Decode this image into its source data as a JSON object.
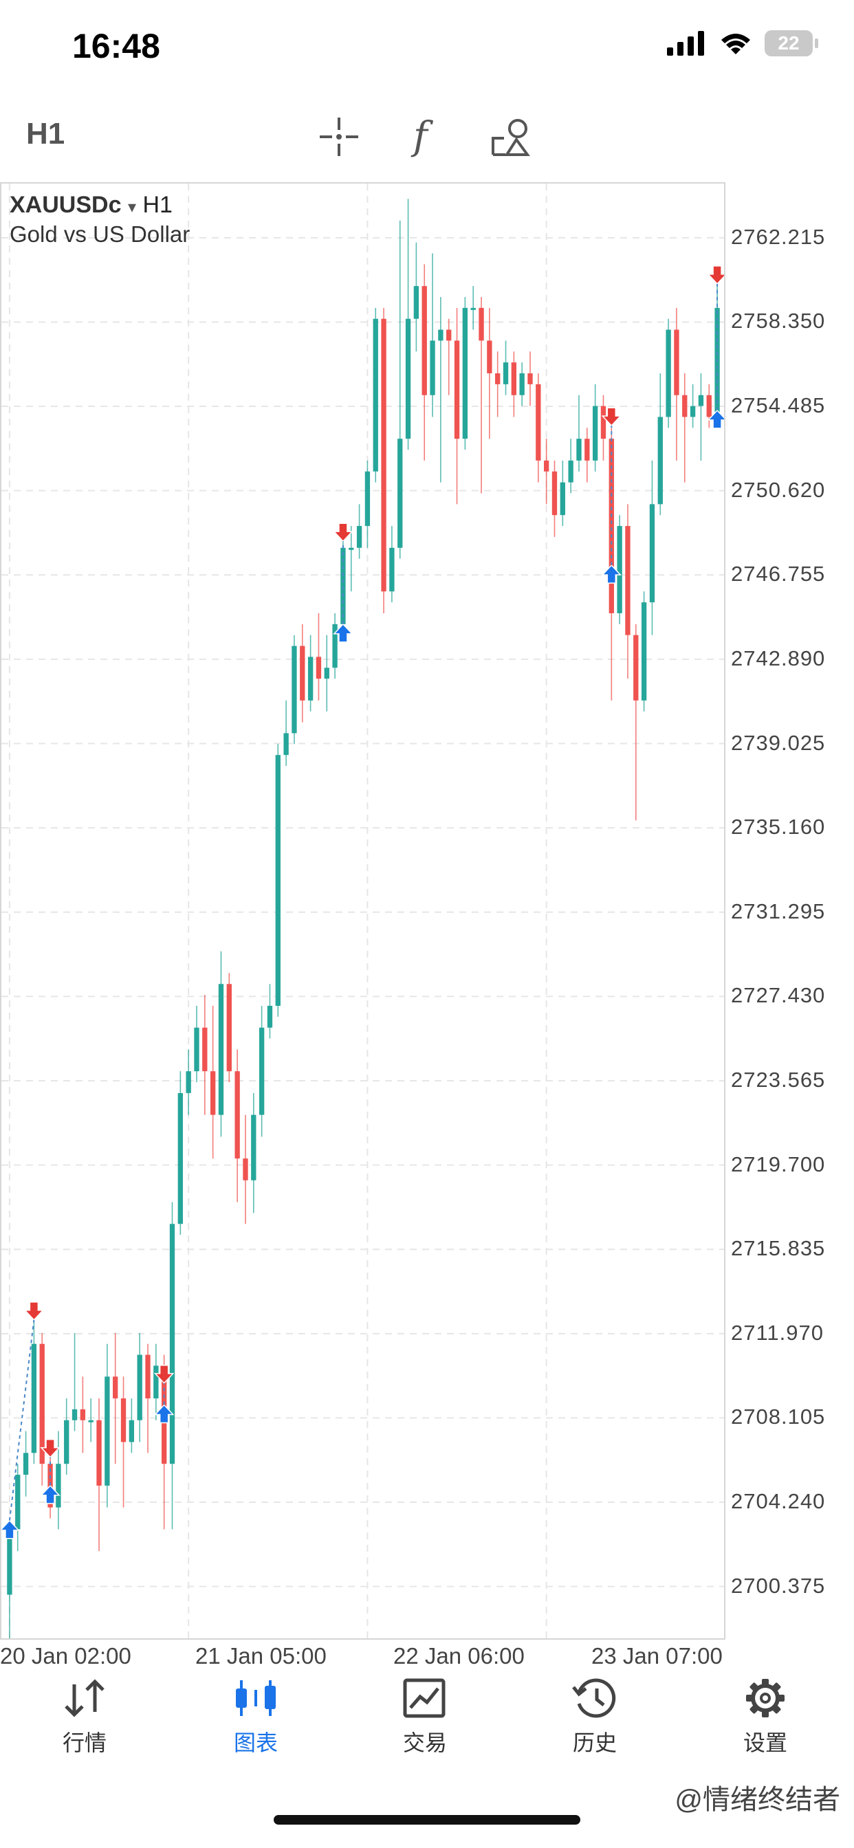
{
  "status_bar": {
    "time": "16:48",
    "battery": "22",
    "icons": [
      "cellular-signal-icon",
      "wifi-icon",
      "battery-icon"
    ]
  },
  "toolbar": {
    "timeframe": "H1",
    "tools": [
      "crosshair-icon",
      "indicators-icon",
      "objects-icon"
    ]
  },
  "chart": {
    "symbol": "XAUUSDc",
    "dropdown_glyph": "▾",
    "timeframe": "H1",
    "description": "Gold vs US Dollar",
    "price_levels": [
      "2762.215",
      "2758.350",
      "2754.485",
      "2750.620",
      "2746.755",
      "2742.890",
      "2739.025",
      "2735.160",
      "2731.295",
      "2727.430",
      "2723.565",
      "2719.700",
      "2715.835",
      "2711.970",
      "2708.105",
      "2704.240",
      "2700.375"
    ],
    "time_labels": [
      "20 Jan 02:00",
      "21 Jan 05:00",
      "22 Jan 06:00",
      "23 Jan 07:00"
    ],
    "colors": {
      "bull": "#26a69a",
      "bear": "#ef5350",
      "buy_arrow": "#1a73e8",
      "sell_arrow": "#e53935",
      "grid": "#e6e6e6"
    }
  },
  "chart_data": {
    "type": "candlestick",
    "title": "XAUUSDc H1",
    "y_range": [
      2698.0,
      2764.7
    ],
    "x_labels": [
      "20 Jan 02:00",
      "21 Jan 05:00",
      "22 Jan 06:00",
      "23 Jan 07:00"
    ],
    "candles": [
      [
        2700.0,
        2703.0,
        2696.0,
        2703.5
      ],
      [
        2703.0,
        2705.5,
        2702.0,
        2706.0
      ],
      [
        2705.5,
        2706.5,
        2704.5,
        2707.5
      ],
      [
        2706.5,
        2711.5,
        2706.0,
        2713.0
      ],
      [
        2711.5,
        2706.0,
        2705.0,
        2712.0
      ],
      [
        2706.0,
        2704.0,
        2703.5,
        2707.0
      ],
      [
        2704.0,
        2706.0,
        2703.0,
        2707.5
      ],
      [
        2706.0,
        2708.0,
        2705.5,
        2709.0
      ],
      [
        2708.0,
        2708.5,
        2707.5,
        2712.0
      ],
      [
        2708.5,
        2708.0,
        2706.5,
        2710.0
      ],
      [
        2708.0,
        2708.0,
        2707.0,
        2709.0
      ],
      [
        2708.0,
        2705.0,
        2702.0,
        2709.0
      ],
      [
        2705.0,
        2710.0,
        2704.0,
        2711.5
      ],
      [
        2710.0,
        2709.0,
        2706.0,
        2712.0
      ],
      [
        2709.0,
        2707.0,
        2704.0,
        2710.0
      ],
      [
        2707.0,
        2708.0,
        2706.5,
        2709.0
      ],
      [
        2708.0,
        2711.0,
        2707.0,
        2712.0
      ],
      [
        2711.0,
        2709.0,
        2706.5,
        2711.5
      ],
      [
        2709.0,
        2710.5,
        2708.0,
        2711.5
      ],
      [
        2710.5,
        2706.0,
        2703.0,
        2711.0
      ],
      [
        2706.0,
        2717.0,
        2703.0,
        2718.0
      ],
      [
        2717.0,
        2723.0,
        2716.5,
        2724.0
      ],
      [
        2723.0,
        2724.0,
        2722.0,
        2725.0
      ],
      [
        2724.0,
        2726.0,
        2723.5,
        2727.0
      ],
      [
        2726.0,
        2724.0,
        2722.0,
        2727.5
      ],
      [
        2724.0,
        2722.0,
        2720.0,
        2727.0
      ],
      [
        2722.0,
        2728.0,
        2721.0,
        2729.5
      ],
      [
        2728.0,
        2724.0,
        2723.5,
        2728.5
      ],
      [
        2724.0,
        2720.0,
        2718.0,
        2725.0
      ],
      [
        2720.0,
        2719.0,
        2717.0,
        2722.0
      ],
      [
        2719.0,
        2722.0,
        2717.5,
        2723.0
      ],
      [
        2722.0,
        2726.0,
        2721.0,
        2727.0
      ],
      [
        2726.0,
        2727.0,
        2725.5,
        2728.0
      ],
      [
        2727.0,
        2738.5,
        2726.5,
        2739.0
      ],
      [
        2738.5,
        2739.5,
        2738.0,
        2741.0
      ],
      [
        2739.5,
        2743.5,
        2739.0,
        2744.0
      ],
      [
        2743.5,
        2741.0,
        2740.0,
        2744.5
      ],
      [
        2741.0,
        2743.0,
        2740.5,
        2744.0
      ],
      [
        2743.0,
        2742.0,
        2741.0,
        2745.0
      ],
      [
        2742.0,
        2742.5,
        2740.5,
        2744.0
      ],
      [
        2742.5,
        2744.5,
        2742.0,
        2745.0
      ],
      [
        2744.5,
        2748.0,
        2744.0,
        2748.5
      ],
      [
        2748.0,
        2748.0,
        2746.0,
        2749.0
      ],
      [
        2748.0,
        2749.0,
        2747.5,
        2750.0
      ],
      [
        2749.0,
        2751.5,
        2748.0,
        2752.0
      ],
      [
        2751.5,
        2758.5,
        2751.0,
        2759.0
      ],
      [
        2758.5,
        2746.0,
        2745.0,
        2759.0
      ],
      [
        2746.0,
        2748.0,
        2745.5,
        2749.0
      ],
      [
        2748.0,
        2753.0,
        2747.5,
        2763.0
      ],
      [
        2753.0,
        2758.5,
        2752.5,
        2764.0
      ],
      [
        2758.5,
        2760.0,
        2757.0,
        2762.0
      ],
      [
        2760.0,
        2755.0,
        2752.0,
        2761.0
      ],
      [
        2755.0,
        2757.5,
        2754.0,
        2761.5
      ],
      [
        2757.5,
        2758.0,
        2751.0,
        2759.5
      ],
      [
        2758.0,
        2757.5,
        2755.0,
        2758.5
      ],
      [
        2757.5,
        2753.0,
        2750.0,
        2759.0
      ],
      [
        2753.0,
        2759.0,
        2752.5,
        2759.5
      ],
      [
        2759.0,
        2759.0,
        2758.0,
        2760.0
      ],
      [
        2759.0,
        2757.5,
        2750.5,
        2759.5
      ],
      [
        2757.5,
        2756.0,
        2753.0,
        2759.0
      ],
      [
        2756.0,
        2755.5,
        2754.0,
        2757.0
      ],
      [
        2755.5,
        2756.5,
        2755.0,
        2757.5
      ],
      [
        2756.5,
        2755.0,
        2754.0,
        2757.0
      ],
      [
        2755.0,
        2756.0,
        2754.5,
        2756.5
      ],
      [
        2756.0,
        2755.5,
        2754.5,
        2757.0
      ],
      [
        2755.5,
        2752.0,
        2751.0,
        2756.0
      ],
      [
        2752.0,
        2751.5,
        2750.0,
        2753.0
      ],
      [
        2751.5,
        2749.5,
        2748.5,
        2752.0
      ],
      [
        2749.5,
        2751.0,
        2749.0,
        2752.0
      ],
      [
        2751.0,
        2752.0,
        2750.5,
        2753.0
      ],
      [
        2752.0,
        2753.0,
        2751.5,
        2755.0
      ],
      [
        2753.0,
        2752.0,
        2751.0,
        2753.5
      ],
      [
        2752.0,
        2754.5,
        2751.5,
        2755.5
      ],
      [
        2754.5,
        2753.0,
        2752.0,
        2755.0
      ],
      [
        2753.0,
        2745.0,
        2741.0,
        2753.5
      ],
      [
        2745.0,
        2749.0,
        2744.5,
        2749.5
      ],
      [
        2749.0,
        2744.0,
        2742.0,
        2750.0
      ],
      [
        2744.0,
        2741.0,
        2735.5,
        2744.5
      ],
      [
        2741.0,
        2745.5,
        2740.5,
        2746.0
      ],
      [
        2745.5,
        2750.0,
        2744.0,
        2752.0
      ],
      [
        2750.0,
        2754.0,
        2749.5,
        2756.0
      ],
      [
        2754.0,
        2758.0,
        2753.5,
        2758.5
      ],
      [
        2758.0,
        2755.0,
        2752.0,
        2759.0
      ],
      [
        2755.0,
        2754.0,
        2751.0,
        2756.0
      ],
      [
        2754.0,
        2754.5,
        2753.5,
        2755.5
      ],
      [
        2754.5,
        2755.0,
        2752.0,
        2756.0
      ],
      [
        2755.0,
        2754.0,
        2753.5,
        2755.5
      ],
      [
        2754.0,
        2759.0,
        2753.5,
        2760.0
      ]
    ],
    "markers": [
      {
        "index": 0,
        "type": "buy",
        "price": 2703.4
      },
      {
        "index": 3,
        "type": "sell",
        "price": 2712.6
      },
      {
        "index": 5,
        "type": "buy",
        "price": 2705.0
      },
      {
        "index": 5,
        "type": "sell",
        "price": 2706.3
      },
      {
        "index": 19,
        "type": "buy",
        "price": 2708.7
      },
      {
        "index": 19,
        "type": "sell",
        "price": 2709.7
      },
      {
        "index": 41,
        "type": "buy",
        "price": 2744.5
      },
      {
        "index": 41,
        "type": "sell",
        "price": 2748.3
      },
      {
        "index": 74,
        "type": "buy",
        "price": 2747.2
      },
      {
        "index": 74,
        "type": "sell",
        "price": 2753.6
      },
      {
        "index": 87,
        "type": "buy",
        "price": 2754.3
      },
      {
        "index": 87,
        "type": "sell",
        "price": 2760.1
      }
    ]
  },
  "tabs": [
    {
      "label": "行情",
      "icon": "quotes-arrows-icon",
      "active": false
    },
    {
      "label": "图表",
      "icon": "chart-candles-icon",
      "active": true
    },
    {
      "label": "交易",
      "icon": "trade-chart-icon",
      "active": false
    },
    {
      "label": "历史",
      "icon": "history-clock-icon",
      "active": false
    },
    {
      "label": "设置",
      "icon": "settings-gear-icon",
      "active": false
    }
  ],
  "watermark": "@情绪终结者"
}
